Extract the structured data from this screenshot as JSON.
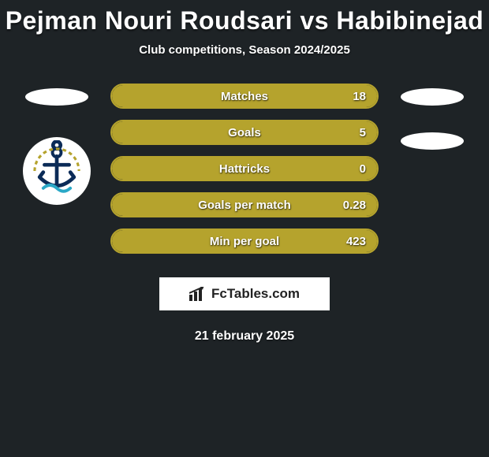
{
  "title": "Pejman Nouri Roudsari vs Habibinejad",
  "subtitle": "Club competitions, Season 2024/2025",
  "colors": {
    "background": "#1e2326",
    "fill": "#b5a32d",
    "track_border": "#b5a32d",
    "text": "#ffffff",
    "chip": "#ffffff"
  },
  "stats": [
    {
      "label": "Matches",
      "value": "18",
      "fill_width": 340
    },
    {
      "label": "Goals",
      "value": "5",
      "fill_width": 340
    },
    {
      "label": "Hattricks",
      "value": "0",
      "fill_width": 340
    },
    {
      "label": "Goals per match",
      "value": "0.28",
      "fill_width": 340
    },
    {
      "label": "Min per goal",
      "value": "423",
      "fill_width": 340
    }
  ],
  "left_side": {
    "chips": 1,
    "show_club_logo": true
  },
  "right_side": {
    "chips": 2,
    "show_club_logo": false
  },
  "club_logo": {
    "name": "malavan-anchor-logo",
    "anchor_color": "#0b2b57",
    "rope_color": "#b5a32d",
    "wave_color": "#2aa8c7"
  },
  "brand_text": "FcTables.com",
  "footer_date": "21 february 2025"
}
